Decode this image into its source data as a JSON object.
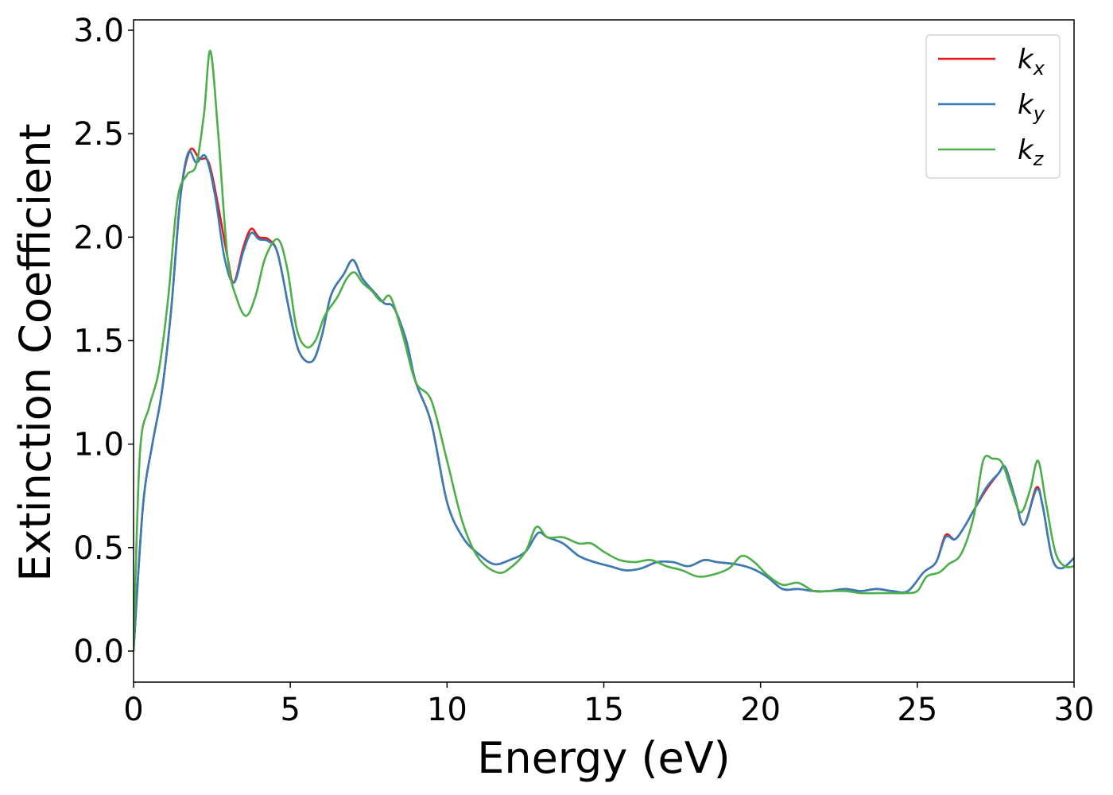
{
  "chart_data": {
    "type": "line",
    "xlabel": "Energy (eV)",
    "ylabel": "Extinction Coefficient",
    "xlim": [
      0,
      30
    ],
    "ylim": [
      -0.15,
      3.05
    ],
    "xticks": [
      "0",
      "5",
      "10",
      "15",
      "20",
      "25",
      "30"
    ],
    "yticks": [
      "0.0",
      "0.5",
      "1.0",
      "1.5",
      "2.0",
      "2.5",
      "3.0"
    ],
    "grid": false,
    "legend_position": "top-right",
    "series": [
      {
        "name": "k_x",
        "legend_base": "k",
        "legend_sub": "x",
        "color": "#e41a1c",
        "x": [
          0,
          0.3,
          0.6,
          0.9,
          1.2,
          1.5,
          1.8,
          2.1,
          2.4,
          2.7,
          3.0,
          3.2,
          3.5,
          3.75,
          4.0,
          4.3,
          4.6,
          5.0,
          5.3,
          5.7,
          6.0,
          6.3,
          6.7,
          7.0,
          7.3,
          7.7,
          8.0,
          8.3,
          8.7,
          9.0,
          9.5,
          10.0,
          10.5,
          11.0,
          11.5,
          12.0,
          12.5,
          12.9,
          13.2,
          13.7,
          14.2,
          14.7,
          15.2,
          15.7,
          16.2,
          16.7,
          17.2,
          17.7,
          18.2,
          18.6,
          19.2,
          19.7,
          20.2,
          20.7,
          21.2,
          21.7,
          22.2,
          22.7,
          23.2,
          23.7,
          24.2,
          24.7,
          25.2,
          25.6,
          25.9,
          26.2,
          26.5,
          26.8,
          27.2,
          27.6,
          27.8,
          28.1,
          28.4,
          28.8,
          29.0,
          29.3,
          29.6,
          30.0
        ],
        "y": [
          0.0,
          0.7,
          1.0,
          1.25,
          1.65,
          2.2,
          2.42,
          2.38,
          2.36,
          2.15,
          1.9,
          1.78,
          1.95,
          2.04,
          2.0,
          1.99,
          1.92,
          1.62,
          1.44,
          1.4,
          1.52,
          1.72,
          1.82,
          1.89,
          1.8,
          1.73,
          1.68,
          1.66,
          1.5,
          1.3,
          1.1,
          0.72,
          0.55,
          0.47,
          0.42,
          0.44,
          0.48,
          0.57,
          0.55,
          0.52,
          0.46,
          0.43,
          0.41,
          0.39,
          0.4,
          0.43,
          0.43,
          0.41,
          0.44,
          0.43,
          0.42,
          0.4,
          0.36,
          0.3,
          0.3,
          0.29,
          0.29,
          0.3,
          0.29,
          0.3,
          0.29,
          0.29,
          0.38,
          0.43,
          0.56,
          0.54,
          0.6,
          0.68,
          0.78,
          0.86,
          0.89,
          0.75,
          0.61,
          0.79,
          0.7,
          0.45,
          0.4,
          0.45
        ]
      },
      {
        "name": "k_y",
        "legend_base": "k",
        "legend_sub": "y",
        "color": "#377eb8",
        "x": [
          0,
          0.3,
          0.6,
          0.9,
          1.2,
          1.5,
          1.75,
          2.0,
          2.3,
          2.6,
          2.9,
          3.2,
          3.5,
          3.75,
          4.0,
          4.3,
          4.6,
          5.0,
          5.3,
          5.7,
          6.0,
          6.3,
          6.7,
          7.0,
          7.3,
          7.7,
          8.0,
          8.3,
          8.7,
          9.0,
          9.5,
          10.0,
          10.5,
          11.0,
          11.5,
          12.0,
          12.5,
          12.9,
          13.2,
          13.7,
          14.2,
          14.7,
          15.2,
          15.7,
          16.2,
          16.7,
          17.2,
          17.7,
          18.2,
          18.6,
          19.2,
          19.7,
          20.2,
          20.7,
          21.2,
          21.7,
          22.2,
          22.7,
          23.2,
          23.7,
          24.2,
          24.7,
          25.2,
          25.6,
          25.9,
          26.2,
          26.5,
          26.8,
          27.2,
          27.6,
          27.8,
          28.1,
          28.4,
          28.8,
          29.0,
          29.3,
          29.6,
          30.0
        ],
        "y": [
          0.0,
          0.7,
          1.0,
          1.25,
          1.65,
          2.2,
          2.41,
          2.36,
          2.39,
          2.2,
          1.9,
          1.78,
          1.93,
          2.02,
          1.99,
          1.98,
          1.92,
          1.62,
          1.44,
          1.4,
          1.52,
          1.72,
          1.82,
          1.89,
          1.8,
          1.73,
          1.68,
          1.66,
          1.5,
          1.3,
          1.1,
          0.72,
          0.55,
          0.47,
          0.42,
          0.44,
          0.48,
          0.57,
          0.55,
          0.52,
          0.46,
          0.43,
          0.41,
          0.39,
          0.4,
          0.43,
          0.43,
          0.41,
          0.44,
          0.43,
          0.42,
          0.4,
          0.36,
          0.3,
          0.3,
          0.29,
          0.29,
          0.3,
          0.29,
          0.3,
          0.29,
          0.29,
          0.38,
          0.43,
          0.55,
          0.54,
          0.6,
          0.68,
          0.79,
          0.86,
          0.89,
          0.75,
          0.61,
          0.78,
          0.7,
          0.45,
          0.4,
          0.45
        ]
      },
      {
        "name": "k_z",
        "legend_base": "k",
        "legend_sub": "z",
        "color": "#4daf4a",
        "x": [
          0,
          0.2,
          0.5,
          0.8,
          1.1,
          1.4,
          1.7,
          2.0,
          2.25,
          2.45,
          2.7,
          3.0,
          3.3,
          3.6,
          3.9,
          4.2,
          4.6,
          4.9,
          5.2,
          5.5,
          5.8,
          6.1,
          6.5,
          6.8,
          7.05,
          7.3,
          7.6,
          7.9,
          8.2,
          8.6,
          9.0,
          9.5,
          10.0,
          10.5,
          11.0,
          11.6,
          12.0,
          12.5,
          12.85,
          13.2,
          13.7,
          14.2,
          14.6,
          15.0,
          15.5,
          16.0,
          16.5,
          17.0,
          17.5,
          18.0,
          18.5,
          19.0,
          19.4,
          19.8,
          20.2,
          20.7,
          21.2,
          21.7,
          22.2,
          22.7,
          23.2,
          23.7,
          24.2,
          24.6,
          25.0,
          25.3,
          25.7,
          26.0,
          26.4,
          26.8,
          27.1,
          27.4,
          27.7,
          28.0,
          28.3,
          28.6,
          28.85,
          29.1,
          29.4,
          29.7,
          30.0
        ],
        "y": [
          0.0,
          0.95,
          1.18,
          1.35,
          1.7,
          2.18,
          2.3,
          2.35,
          2.6,
          2.9,
          2.5,
          1.9,
          1.7,
          1.62,
          1.72,
          1.9,
          1.99,
          1.85,
          1.56,
          1.47,
          1.5,
          1.62,
          1.71,
          1.8,
          1.83,
          1.78,
          1.74,
          1.69,
          1.71,
          1.52,
          1.3,
          1.21,
          0.92,
          0.62,
          0.45,
          0.38,
          0.4,
          0.48,
          0.6,
          0.55,
          0.55,
          0.52,
          0.52,
          0.48,
          0.44,
          0.43,
          0.44,
          0.41,
          0.39,
          0.36,
          0.37,
          0.4,
          0.46,
          0.43,
          0.37,
          0.32,
          0.33,
          0.29,
          0.29,
          0.29,
          0.28,
          0.28,
          0.28,
          0.28,
          0.29,
          0.36,
          0.38,
          0.42,
          0.47,
          0.65,
          0.92,
          0.93,
          0.91,
          0.78,
          0.67,
          0.78,
          0.92,
          0.72,
          0.48,
          0.41,
          0.41
        ]
      }
    ]
  }
}
